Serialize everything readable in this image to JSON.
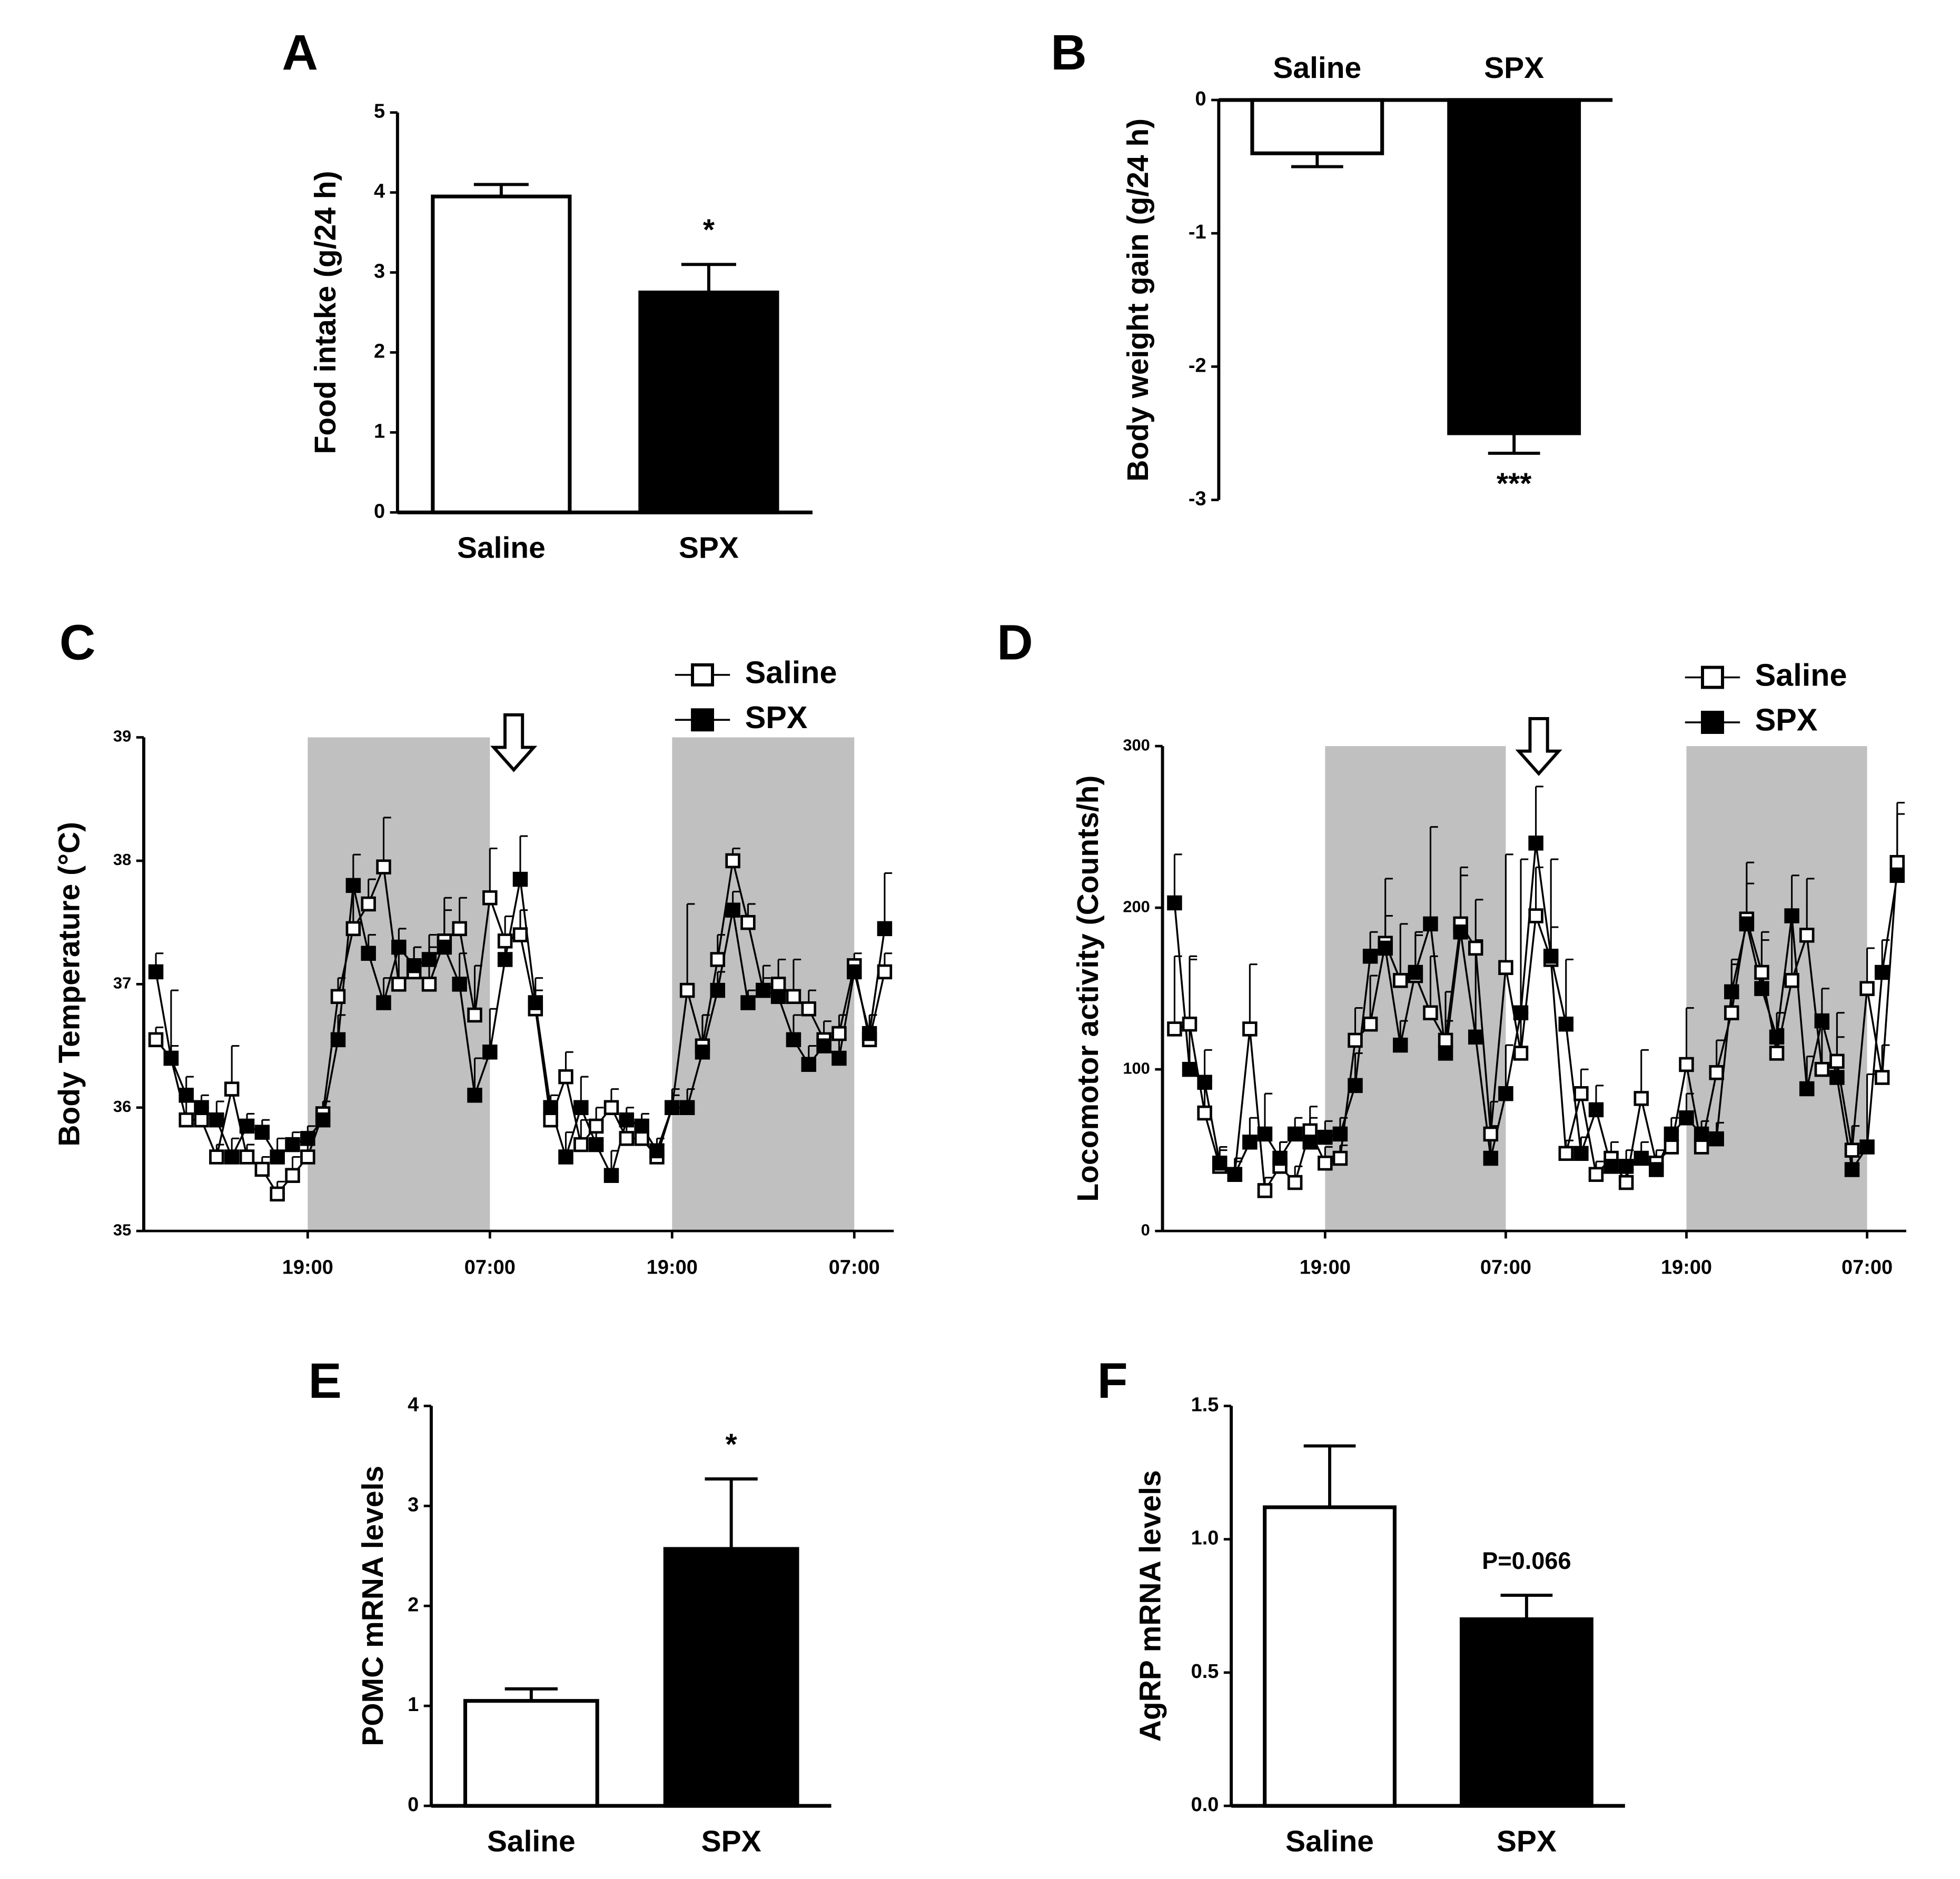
{
  "chart_data": [
    {
      "type": "bar",
      "panel": "A",
      "y_label": "Food intake (g/24 h)",
      "categories": [
        "Saline",
        "SPX"
      ],
      "values": [
        3.95,
        2.75
      ],
      "errors": [
        0.15,
        0.35
      ],
      "annotations": [
        null,
        "*"
      ],
      "colors": [
        "#ffffff",
        "#000000"
      ],
      "ylim": [
        0,
        5
      ],
      "yticks": [
        0,
        1,
        2,
        3,
        4,
        5
      ]
    },
    {
      "type": "bar",
      "panel": "B",
      "y_label": "Body weight gain (g/24 h)",
      "categories": [
        "Saline",
        "SPX"
      ],
      "values": [
        -0.4,
        -2.5
      ],
      "errors": [
        0.1,
        0.15
      ],
      "annotations": [
        null,
        "***"
      ],
      "colors": [
        "#ffffff",
        "#000000"
      ],
      "ylim": [
        -3,
        0
      ],
      "yticks": [
        0,
        -1,
        -2,
        -3
      ]
    },
    {
      "type": "line",
      "panel": "C",
      "y_label": "Body Temperature (°C)",
      "legend": "top-right",
      "shaded": [
        [
          10,
          22
        ],
        [
          34,
          46
        ]
      ],
      "shade_color": "#c0c0c0",
      "x": [
        0,
        1,
        2,
        3,
        4,
        5,
        6,
        7,
        8,
        9,
        10,
        11,
        12,
        13,
        14,
        15,
        16,
        17,
        18,
        19,
        20,
        21,
        22,
        23,
        24,
        25,
        26,
        27,
        28,
        29,
        30,
        31,
        32,
        33,
        34,
        35,
        36,
        37,
        38,
        39,
        40,
        41,
        42,
        43,
        44,
        45,
        46,
        47,
        48
      ],
      "series": [
        {
          "name": "Saline",
          "color": "#ffffff",
          "values": [
            36.55,
            36.4,
            35.9,
            35.9,
            35.6,
            36.15,
            35.6,
            35.5,
            35.3,
            35.45,
            35.6,
            35.95,
            36.9,
            37.45,
            37.65,
            37.95,
            37.0,
            37.1,
            37.0,
            37.35,
            37.45,
            36.75,
            37.7,
            37.35,
            37.4,
            36.8,
            35.9,
            36.25,
            35.7,
            35.85,
            36.0,
            35.75,
            35.75,
            35.6,
            36.0,
            36.95,
            36.5,
            37.2,
            38.0,
            37.5,
            36.95,
            37.0,
            36.9,
            36.8,
            36.55,
            36.6,
            37.15,
            36.55,
            37.1
          ],
          "errors": [
            0.1,
            0.1,
            0.15,
            0.1,
            0.1,
            0.35,
            0.1,
            0.1,
            0.1,
            0.15,
            0.1,
            0.1,
            0.15,
            0.3,
            0.2,
            0.4,
            0.25,
            0.2,
            0.3,
            0.35,
            0.25,
            0.4,
            0.4,
            0.2,
            0.2,
            0.15,
            0.1,
            0.2,
            0.2,
            0.15,
            0.15,
            0.1,
            0.1,
            0.1,
            0.1,
            0.7,
            0.25,
            0.2,
            0.1,
            0.15,
            0.2,
            0.2,
            0.3,
            0.15,
            0.15,
            0.15,
            0.1,
            0.2,
            0.15
          ]
        },
        {
          "name": "SPX",
          "color": "#000000",
          "values": [
            37.1,
            36.4,
            36.1,
            36.0,
            35.9,
            35.6,
            35.85,
            35.8,
            35.6,
            35.7,
            35.75,
            35.9,
            36.55,
            37.8,
            37.25,
            36.85,
            37.3,
            37.15,
            37.2,
            37.3,
            37.0,
            36.1,
            36.45,
            37.2,
            37.85,
            36.85,
            36.0,
            35.6,
            36.0,
            35.7,
            35.45,
            35.9,
            35.85,
            35.65,
            36.0,
            36.0,
            36.45,
            36.95,
            37.6,
            36.85,
            36.95,
            36.9,
            36.55,
            36.35,
            36.5,
            36.4,
            37.1,
            36.6,
            37.45
          ],
          "errors": [
            0.15,
            0.55,
            0.15,
            0.1,
            0.15,
            0.15,
            0.1,
            0.1,
            0.15,
            0.1,
            0.1,
            0.1,
            0.2,
            0.25,
            0.15,
            0.2,
            0.15,
            0.15,
            0.2,
            0.3,
            0.25,
            0.3,
            0.35,
            0.2,
            0.35,
            0.2,
            0.1,
            0.2,
            0.25,
            0.2,
            0.2,
            0.1,
            0.1,
            0.1,
            0.15,
            0.15,
            0.3,
            0.15,
            0.15,
            0.1,
            0.1,
            0.1,
            0.2,
            0.15,
            0.1,
            0.15,
            0.1,
            0.15,
            0.45
          ]
        }
      ],
      "xlim": [
        -0.8,
        48.6
      ],
      "xticks": [
        {
          "value": 10,
          "label": "19:00"
        },
        {
          "value": 22,
          "label": "07:00"
        },
        {
          "value": 34,
          "label": "19:00"
        },
        {
          "value": 46,
          "label": "07:00"
        }
      ],
      "ylim": [
        35,
        39
      ],
      "yticks": [
        35,
        36,
        37,
        38,
        39
      ]
    },
    {
      "type": "line",
      "panel": "D",
      "y_label": "Locomotor activity (Counts/h)",
      "legend": "top-right",
      "shaded": [
        [
          10,
          22
        ],
        [
          34,
          46
        ]
      ],
      "shade_color": "#c0c0c0",
      "x": [
        0,
        1,
        2,
        3,
        4,
        5,
        6,
        7,
        8,
        9,
        10,
        11,
        12,
        13,
        14,
        15,
        16,
        17,
        18,
        19,
        20,
        21,
        22,
        23,
        24,
        25,
        26,
        27,
        28,
        29,
        30,
        31,
        32,
        33,
        34,
        35,
        36,
        37,
        38,
        39,
        40,
        41,
        42,
        43,
        44,
        45,
        46,
        47,
        48
      ],
      "series": [
        {
          "name": "Saline",
          "color": "#ffffff",
          "values": [
            125,
            128,
            73,
            40,
            35,
            125,
            25,
            40,
            30,
            62,
            42,
            45,
            118,
            128,
            178,
            155,
            158,
            135,
            118,
            190,
            175,
            60,
            163,
            110,
            195,
            168,
            48,
            85,
            35,
            45,
            30,
            82,
            42,
            52,
            103,
            52,
            98,
            135,
            193,
            160,
            110,
            155,
            183,
            100,
            105,
            50,
            150,
            95,
            228
          ],
          "errors": [
            45,
            40,
            20,
            10,
            10,
            40,
            8,
            15,
            10,
            15,
            10,
            8,
            20,
            30,
            40,
            35,
            25,
            35,
            30,
            35,
            30,
            20,
            70,
            25,
            30,
            20,
            8,
            15,
            8,
            10,
            8,
            30,
            8,
            10,
            35,
            10,
            20,
            30,
            35,
            25,
            15,
            40,
            35,
            25,
            30,
            15,
            25,
            20,
            30
          ]
        },
        {
          "name": "SPX",
          "color": "#000000",
          "values": [
            203,
            100,
            92,
            42,
            35,
            55,
            60,
            45,
            60,
            55,
            58,
            60,
            90,
            170,
            175,
            115,
            160,
            190,
            110,
            185,
            120,
            45,
            85,
            135,
            240,
            170,
            128,
            48,
            75,
            40,
            40,
            45,
            38,
            60,
            70,
            60,
            57,
            148,
            190,
            150,
            120,
            195,
            88,
            130,
            95,
            38,
            52,
            160,
            220
          ],
          "errors": [
            30,
            70,
            20,
            10,
            8,
            15,
            25,
            10,
            10,
            15,
            10,
            10,
            20,
            15,
            20,
            15,
            25,
            60,
            20,
            35,
            60,
            20,
            30,
            95,
            35,
            60,
            40,
            10,
            15,
            8,
            10,
            10,
            8,
            10,
            15,
            8,
            10,
            20,
            25,
            30,
            15,
            25,
            20,
            20,
            25,
            10,
            45,
            20,
            45
          ]
        }
      ],
      "xlim": [
        -0.8,
        48.6
      ],
      "xticks": [
        {
          "value": 10,
          "label": "19:00"
        },
        {
          "value": 22,
          "label": "07:00"
        },
        {
          "value": 34,
          "label": "19:00"
        },
        {
          "value": 46,
          "label": "07:00"
        }
      ],
      "ylim": [
        0,
        300
      ],
      "yticks": [
        0,
        100,
        200,
        300
      ]
    },
    {
      "type": "bar",
      "panel": "E",
      "y_label": "POMC mRNA levels",
      "categories": [
        "Saline",
        "SPX"
      ],
      "values": [
        1.05,
        2.57
      ],
      "errors": [
        0.12,
        0.7
      ],
      "annotations": [
        null,
        "*"
      ],
      "colors": [
        "#ffffff",
        "#000000"
      ],
      "ylim": [
        0,
        4
      ],
      "yticks": [
        0,
        1,
        2,
        3,
        4
      ]
    },
    {
      "type": "bar",
      "panel": "F",
      "y_label": "AgRP mRNA levels",
      "categories": [
        "Saline",
        "SPX"
      ],
      "values": [
        1.12,
        0.7
      ],
      "errors": [
        0.23,
        0.09
      ],
      "annotations": [
        null,
        "P=0.066"
      ],
      "colors": [
        "#ffffff",
        "#000000"
      ],
      "ylim": [
        0,
        1.5
      ],
      "yticks": [
        {
          "value": 0,
          "label": "0.0"
        },
        0.5,
        {
          "value": 1,
          "label": "1.0"
        },
        1.5
      ]
    }
  ]
}
